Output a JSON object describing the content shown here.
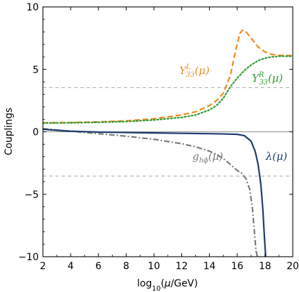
{
  "chart_data": {
    "type": "line",
    "xlabel": "log10(μ/GeV)",
    "ylabel": "Couplings",
    "xlim": [
      2,
      20
    ],
    "ylim": [
      -10,
      10
    ],
    "xticks": [
      2,
      4,
      6,
      8,
      10,
      12,
      14,
      16,
      18,
      20
    ],
    "yticks": [
      -10,
      -5,
      0,
      5,
      10
    ],
    "ytick_labels": [
      "−10",
      "−5",
      "0",
      "5",
      "10"
    ],
    "grid": false,
    "reference_lines": [
      {
        "y": 3.54,
        "style": "dashed",
        "color": "#aaaaaa"
      },
      {
        "y": -3.54,
        "style": "dashed",
        "color": "#aaaaaa"
      },
      {
        "y": 0,
        "style": "solid",
        "color": "#8a8a8a"
      }
    ],
    "series": [
      {
        "name": "Y^L_33(μ)",
        "label_main": "Y",
        "label_sup": "L",
        "label_sub": "33",
        "label_arg": "(μ)",
        "color": "#ee8a1c",
        "style": "dashed",
        "points": [
          [
            2,
            0.72
          ],
          [
            4,
            0.74
          ],
          [
            6,
            0.8
          ],
          [
            8,
            0.88
          ],
          [
            10,
            1.05
          ],
          [
            12,
            1.35
          ],
          [
            13,
            1.6
          ],
          [
            14,
            2.1
          ],
          [
            14.5,
            2.5
          ],
          [
            15,
            3.1
          ],
          [
            15.5,
            4.5
          ],
          [
            15.9,
            6.6
          ],
          [
            16.2,
            7.9
          ],
          [
            16.4,
            8.15
          ],
          [
            16.6,
            8.05
          ],
          [
            17,
            7.5
          ],
          [
            17.5,
            6.8
          ],
          [
            18,
            6.4
          ],
          [
            18.5,
            6.2
          ],
          [
            19,
            6.12
          ],
          [
            20,
            6.1
          ]
        ]
      },
      {
        "name": "Y^R_33(μ)",
        "label_main": "Y",
        "label_sup": "R",
        "label_sub": "33",
        "label_arg": "(μ)",
        "color": "#2e9a2e",
        "style": "dotted",
        "points": [
          [
            2,
            0.7
          ],
          [
            4,
            0.72
          ],
          [
            6,
            0.76
          ],
          [
            8,
            0.82
          ],
          [
            10,
            0.95
          ],
          [
            12,
            1.15
          ],
          [
            13,
            1.35
          ],
          [
            14,
            1.75
          ],
          [
            14.5,
            2.1
          ],
          [
            15,
            2.7
          ],
          [
            15.5,
            3.6
          ],
          [
            16,
            4.3
          ],
          [
            16.5,
            4.9
          ],
          [
            17,
            5.35
          ],
          [
            17.5,
            5.7
          ],
          [
            18,
            5.9
          ],
          [
            18.5,
            6.0
          ],
          [
            19,
            6.05
          ],
          [
            20,
            6.05
          ]
        ]
      },
      {
        "name": "g_hϕ(μ)",
        "label_main": "g",
        "label_sub": "hϕ",
        "label_arg": "(μ)",
        "color": "#7a7a7a",
        "style": "dashdot",
        "points": [
          [
            2,
            0.25
          ],
          [
            4,
            0.05
          ],
          [
            6,
            -0.15
          ],
          [
            8,
            -0.35
          ],
          [
            10,
            -0.6
          ],
          [
            12,
            -0.95
          ],
          [
            13,
            -1.2
          ],
          [
            14,
            -1.55
          ],
          [
            14.5,
            -1.8
          ],
          [
            15,
            -2.15
          ],
          [
            15.5,
            -2.6
          ],
          [
            16,
            -3.1
          ],
          [
            16.3,
            -3.3
          ],
          [
            16.6,
            -3.7
          ],
          [
            16.9,
            -4.6
          ],
          [
            17.1,
            -6.2
          ],
          [
            17.25,
            -8.2
          ],
          [
            17.35,
            -9.5
          ],
          [
            17.45,
            -10.0
          ]
        ]
      },
      {
        "name": "λ(μ)",
        "label_main": "λ",
        "label_arg": "(μ)",
        "color": "#1c3b6e",
        "style": "solid",
        "points": [
          [
            2,
            0.2
          ],
          [
            4,
            0.05
          ],
          [
            6,
            -0.02
          ],
          [
            8,
            -0.06
          ],
          [
            10,
            -0.09
          ],
          [
            12,
            -0.12
          ],
          [
            14,
            -0.15
          ],
          [
            15,
            -0.17
          ],
          [
            16,
            -0.2
          ],
          [
            16.5,
            -0.3
          ],
          [
            17,
            -0.75
          ],
          [
            17.3,
            -1.6
          ],
          [
            17.5,
            -2.6
          ],
          [
            17.7,
            -4.2
          ],
          [
            17.85,
            -6.3
          ],
          [
            17.95,
            -8.3
          ],
          [
            18.05,
            -10.0
          ]
        ]
      }
    ]
  }
}
